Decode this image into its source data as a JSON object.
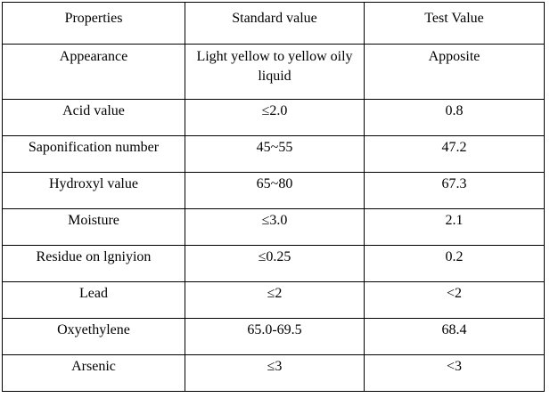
{
  "table": {
    "headers": [
      "Properties",
      "Standard value",
      "Test Value"
    ],
    "rows": [
      {
        "property": "Appearance",
        "standard": "Light yellow to yellow oily liquid",
        "test": "Apposite"
      },
      {
        "property": "Acid value",
        "standard": "≤2.0",
        "test": "0.8"
      },
      {
        "property": "Saponification number",
        "standard": "45~55",
        "test": "47.2"
      },
      {
        "property": "Hydroxyl value",
        "standard": "65~80",
        "test": "67.3"
      },
      {
        "property": "Moisture",
        "standard": "≤3.0",
        "test": "2.1"
      },
      {
        "property": "Residue on lgniyion",
        "standard": "≤0.25",
        "test": "0.2"
      },
      {
        "property": "Lead",
        "standard": "≤2",
        "test": "<2"
      },
      {
        "property": "Oxyethylene",
        "standard": "65.0-69.5",
        "test": "68.4"
      },
      {
        "property": "Arsenic",
        "standard": "≤3",
        "test": "<3"
      }
    ]
  }
}
